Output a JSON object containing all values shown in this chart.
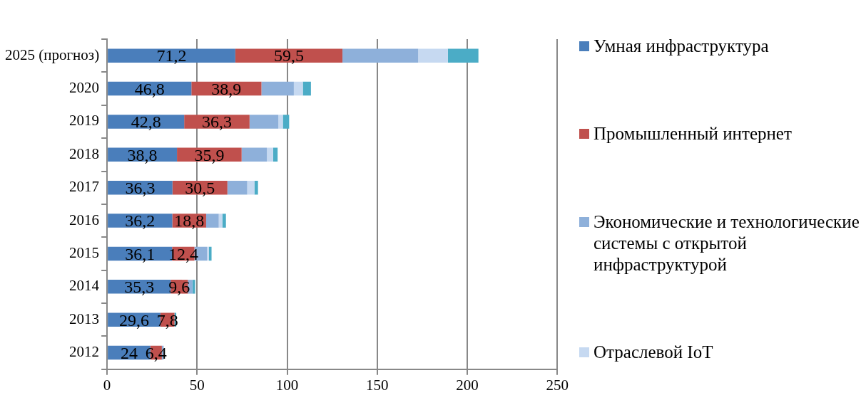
{
  "chart_data": {
    "type": "bar",
    "orientation": "horizontal",
    "stacked": true,
    "categories": [
      "2025 (прогноз)",
      "2020",
      "2019",
      "2018",
      "2017",
      "2016",
      "2015",
      "2014",
      "2013",
      "2012"
    ],
    "series": [
      {
        "name": "Умная инфраструктура",
        "color": "#4a7ebb",
        "values": [
          71.2,
          46.8,
          42.8,
          38.8,
          36.3,
          36.2,
          36.1,
          35.3,
          29.6,
          24
        ],
        "value_labels": [
          "71,2",
          "46,8",
          "42,8",
          "38,8",
          "36,3",
          "36,2",
          "36,1",
          "35,3",
          "29,6",
          "24"
        ]
      },
      {
        "name": "Промышленный интернет",
        "color": "#c0504d",
        "values": [
          59.5,
          38.9,
          36.3,
          35.9,
          30.5,
          18.8,
          12.4,
          9.6,
          7.8,
          6.4
        ],
        "value_labels": [
          "59,5",
          "38,9",
          "36,3",
          "35,9",
          "30,5",
          "18,8",
          "12,4",
          "9,6",
          "7,8",
          "6,4"
        ]
      },
      {
        "name": "Экономические и технологические системы с открытой инфраструктурой",
        "color": "#8eb0da",
        "values": [
          42,
          18,
          16,
          14,
          11,
          7,
          7,
          2.5,
          null,
          1
        ]
      },
      {
        "name": "Отраслевой IoT",
        "color": "#c6d9f1",
        "values": [
          16.5,
          5,
          2.5,
          3.5,
          4,
          2,
          1,
          null,
          null,
          0
        ]
      },
      {
        "color": "#4bacc6",
        "values": [
          17,
          4.5,
          3.5,
          2.5,
          2,
          2,
          1.5,
          1.5,
          1,
          null
        ]
      }
    ],
    "xlim": [
      0,
      250
    ],
    "xticks": [
      0,
      50,
      100,
      150,
      200,
      250
    ],
    "grid": "x",
    "legend": "right"
  }
}
